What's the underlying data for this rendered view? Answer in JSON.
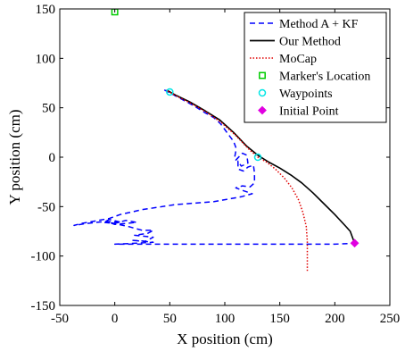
{
  "chart_data": {
    "type": "line",
    "title": "",
    "xlabel": "X position (cm)",
    "ylabel": "Y position (cm)",
    "xlim": [
      -50,
      250
    ],
    "ylim": [
      -150,
      150
    ],
    "x_ticks": [
      -50,
      0,
      50,
      100,
      150,
      200,
      250
    ],
    "y_ticks": [
      -150,
      -100,
      -50,
      0,
      50,
      100,
      150
    ],
    "x_tick_labels": [
      "-50",
      "0",
      "50",
      "100",
      "150",
      "200",
      "250"
    ],
    "y_tick_labels": [
      "-150",
      "-100",
      "-50",
      "0",
      "50",
      "100",
      "150"
    ],
    "grid": false,
    "legend_position": "top-right",
    "series": [
      {
        "name": "Method A + KF",
        "kind": "line",
        "style": "dashed",
        "color": "#0000ff",
        "points": [
          [
            45,
            68
          ],
          [
            52,
            64
          ],
          [
            62,
            58
          ],
          [
            72,
            52
          ],
          [
            82,
            45
          ],
          [
            90,
            40
          ],
          [
            96,
            34
          ],
          [
            100,
            28
          ],
          [
            104,
            22
          ],
          [
            108,
            16
          ],
          [
            110,
            10
          ],
          [
            110,
            6
          ],
          [
            109,
            0
          ],
          [
            110,
            -3
          ],
          [
            116,
            4
          ],
          [
            120,
            2
          ],
          [
            121,
            -6
          ],
          [
            115,
            -9
          ],
          [
            112,
            -4
          ],
          [
            112,
            -12
          ],
          [
            117,
            -14
          ],
          [
            121,
            -10
          ],
          [
            126,
            -8
          ],
          [
            127,
            -16
          ],
          [
            127,
            -26
          ],
          [
            123,
            -30
          ],
          [
            116,
            -29
          ],
          [
            110,
            -31
          ],
          [
            117,
            -34
          ],
          [
            125,
            -37
          ],
          [
            115,
            -40
          ],
          [
            90,
            -45
          ],
          [
            55,
            -48
          ],
          [
            25,
            -53
          ],
          [
            5,
            -58
          ],
          [
            -5,
            -62
          ],
          [
            -15,
            -64
          ],
          [
            -30,
            -67
          ],
          [
            -37,
            -69
          ],
          [
            -25,
            -67
          ],
          [
            -8,
            -65
          ],
          [
            6,
            -66
          ],
          [
            -5,
            -63
          ],
          [
            -10,
            -66
          ],
          [
            0,
            -67
          ],
          [
            10,
            -64
          ],
          [
            20,
            -66
          ],
          [
            0,
            -68
          ],
          [
            -5,
            -66
          ],
          [
            12,
            -70
          ],
          [
            25,
            -74
          ],
          [
            35,
            -74
          ],
          [
            30,
            -77
          ],
          [
            18,
            -79
          ],
          [
            35,
            -81
          ],
          [
            28,
            -85
          ],
          [
            15,
            -84
          ],
          [
            35,
            -86
          ],
          [
            20,
            -87
          ],
          [
            0,
            -88
          ],
          [
            60,
            -88
          ],
          [
            110,
            -88
          ],
          [
            160,
            -88
          ],
          [
            200,
            -88
          ],
          [
            218,
            -87
          ]
        ]
      },
      {
        "name": "Our Method",
        "kind": "line",
        "style": "solid",
        "color": "#000000",
        "points": [
          [
            47,
            68
          ],
          [
            55,
            63
          ],
          [
            68,
            56
          ],
          [
            82,
            47
          ],
          [
            95,
            38
          ],
          [
            108,
            25
          ],
          [
            120,
            11
          ],
          [
            130,
            2
          ],
          [
            140,
            -5
          ],
          [
            150,
            -11
          ],
          [
            160,
            -18
          ],
          [
            170,
            -26
          ],
          [
            180,
            -36
          ],
          [
            190,
            -47
          ],
          [
            200,
            -58
          ],
          [
            210,
            -70
          ],
          [
            214,
            -75
          ],
          [
            218,
            -87
          ]
        ]
      },
      {
        "name": "MoCap",
        "kind": "line",
        "style": "dotted",
        "color": "#e00000",
        "points": [
          [
            48,
            67
          ],
          [
            56,
            62
          ],
          [
            70,
            54
          ],
          [
            84,
            45
          ],
          [
            97,
            35
          ],
          [
            110,
            22
          ],
          [
            122,
            8
          ],
          [
            130,
            0
          ],
          [
            138,
            -5
          ],
          [
            146,
            -12
          ],
          [
            154,
            -21
          ],
          [
            161,
            -31
          ],
          [
            167,
            -43
          ],
          [
            171,
            -56
          ],
          [
            174,
            -70
          ],
          [
            175,
            -85
          ],
          [
            175,
            -100
          ],
          [
            175,
            -115
          ]
        ]
      },
      {
        "name": "Marker's Location",
        "kind": "marker",
        "shape": "square",
        "color": "#00cc00",
        "points": [
          [
            0,
            147
          ]
        ]
      },
      {
        "name": "Waypoints",
        "kind": "marker",
        "shape": "circle",
        "color": "#00e5e5",
        "points": [
          [
            50,
            66
          ],
          [
            130,
            0
          ]
        ]
      },
      {
        "name": "Initial Point",
        "kind": "marker",
        "shape": "diamond",
        "color": "#e000e0",
        "points": [
          [
            218,
            -87
          ]
        ]
      }
    ]
  }
}
